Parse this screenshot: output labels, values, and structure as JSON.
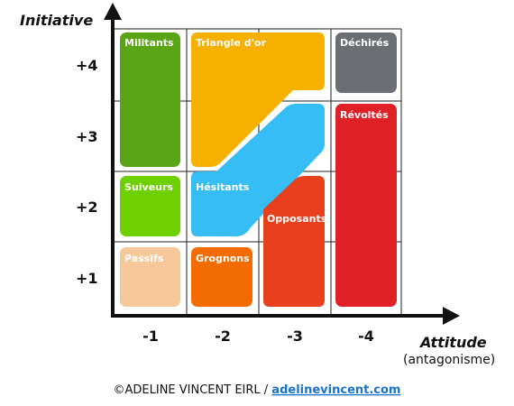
{
  "axes": {
    "y_label": "Initiative",
    "x_label": "Attitude",
    "x_sublabel": "(antagonisme)",
    "y_ticks": [
      "+4",
      "+3",
      "+2",
      "+1"
    ],
    "x_ticks": [
      "-1",
      "-2",
      "-3",
      "-4"
    ]
  },
  "zones": [
    "Militants",
    "Triangle d'or",
    "Déchirés",
    "Révoltés",
    "Suiveurs",
    "Hésitants",
    "Opposants",
    "Passifs",
    "Grognons"
  ],
  "footer": {
    "copyright": "©ADELINE VINCENT EIRL / ",
    "link": "adelinevincent.com"
  }
}
